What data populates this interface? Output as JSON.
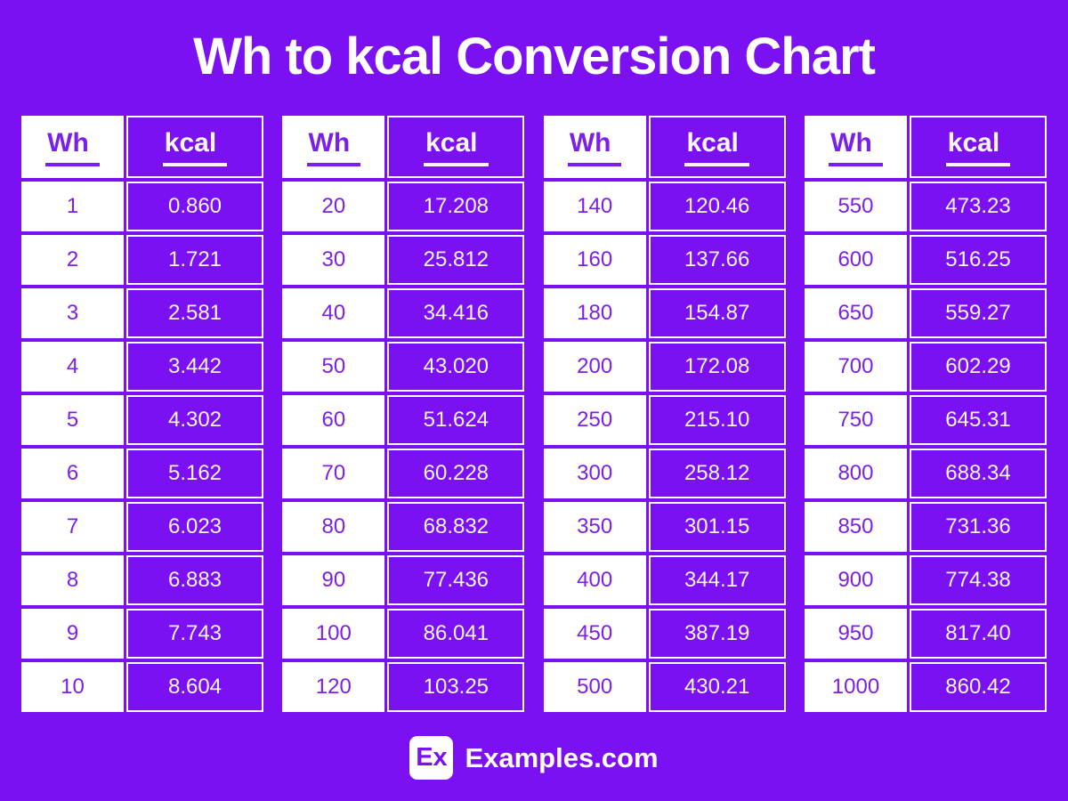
{
  "title": "Wh to kcal Conversion Chart",
  "colors": {
    "background_purple": "#7B10F3",
    "cell_purple": "#7B10F3",
    "wh_text_purple": "#7C1FE8",
    "white": "#FFFFFF"
  },
  "chart_data": {
    "type": "table",
    "title": "Wh to kcal Conversion Chart",
    "column_headers": [
      "Wh",
      "kcal"
    ],
    "groups": [
      {
        "rows": [
          [
            "1",
            "0.860"
          ],
          [
            "2",
            "1.721"
          ],
          [
            "3",
            "2.581"
          ],
          [
            "4",
            "3.442"
          ],
          [
            "5",
            "4.302"
          ],
          [
            "6",
            "5.162"
          ],
          [
            "7",
            "6.023"
          ],
          [
            "8",
            "6.883"
          ],
          [
            "9",
            "7.743"
          ],
          [
            "10",
            "8.604"
          ]
        ]
      },
      {
        "rows": [
          [
            "20",
            "17.208"
          ],
          [
            "30",
            "25.812"
          ],
          [
            "40",
            "34.416"
          ],
          [
            "50",
            "43.020"
          ],
          [
            "60",
            "51.624"
          ],
          [
            "70",
            "60.228"
          ],
          [
            "80",
            "68.832"
          ],
          [
            "90",
            "77.436"
          ],
          [
            "100",
            "86.041"
          ],
          [
            "120",
            "103.25"
          ]
        ]
      },
      {
        "rows": [
          [
            "140",
            "120.46"
          ],
          [
            "160",
            "137.66"
          ],
          [
            "180",
            "154.87"
          ],
          [
            "200",
            "172.08"
          ],
          [
            "250",
            "215.10"
          ],
          [
            "300",
            "258.12"
          ],
          [
            "350",
            "301.15"
          ],
          [
            "400",
            "344.17"
          ],
          [
            "450",
            "387.19"
          ],
          [
            "500",
            "430.21"
          ]
        ]
      },
      {
        "rows": [
          [
            "550",
            "473.23"
          ],
          [
            "600",
            "516.25"
          ],
          [
            "650",
            "559.27"
          ],
          [
            "700",
            "602.29"
          ],
          [
            "750",
            "645.31"
          ],
          [
            "800",
            "688.34"
          ],
          [
            "850",
            "731.36"
          ],
          [
            "900",
            "774.38"
          ],
          [
            "950",
            "817.40"
          ],
          [
            "1000",
            "860.42"
          ]
        ]
      }
    ]
  },
  "footer": {
    "logo_text": "Ex",
    "site_name": "Examples.com"
  }
}
